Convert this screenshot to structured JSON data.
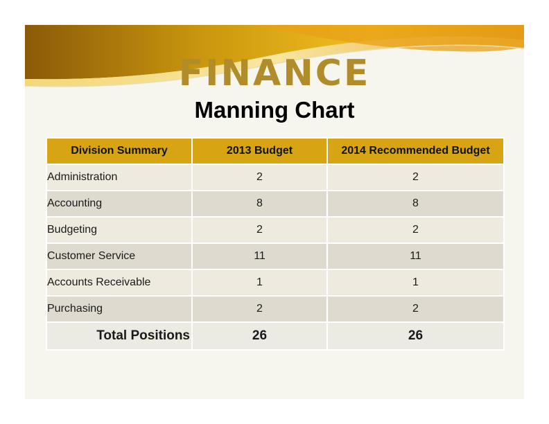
{
  "slide": {
    "title": "FINANCE",
    "subtitle": "Manning Chart"
  },
  "colors": {
    "header_fill": "#d7a413",
    "title_gold": "#b08d2a",
    "row_light": "#eeeae0",
    "row_dark": "#dedad0"
  },
  "table": {
    "headers": [
      "Division Summary",
      "2013 Budget",
      "2014 Recommended Budget"
    ],
    "rows": [
      {
        "name": "Administration",
        "b2013": "2",
        "b2014": "2"
      },
      {
        "name": "Accounting",
        "b2013": "8",
        "b2014": "8"
      },
      {
        "name": "Budgeting",
        "b2013": "2",
        "b2014": "2"
      },
      {
        "name": "Customer Service",
        "b2013": "11",
        "b2014": "11"
      },
      {
        "name": "Accounts Receivable",
        "b2013": "1",
        "b2014": "1"
      },
      {
        "name": "Purchasing",
        "b2013": "2",
        "b2014": "2"
      }
    ],
    "total": {
      "name": "Total Positions",
      "b2013": "26",
      "b2014": "26"
    }
  }
}
